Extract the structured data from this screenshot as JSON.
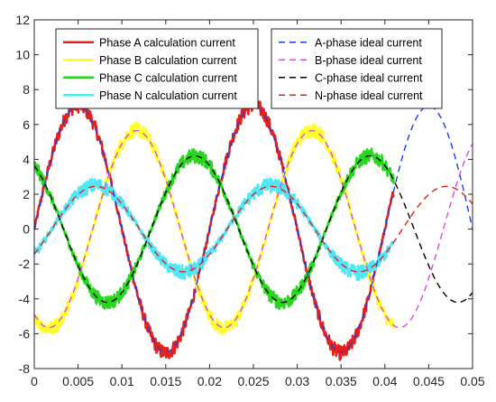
{
  "chart_data": {
    "type": "line",
    "title": "",
    "xlabel": "",
    "ylabel": "",
    "xlim": [
      0,
      0.05
    ],
    "ylim": [
      -8,
      12
    ],
    "grid": false,
    "legend_placement": "top, two columns",
    "x_ticks": [
      0,
      0.005,
      0.01,
      0.015,
      0.02,
      0.025,
      0.03,
      0.035,
      0.04,
      0.045,
      0.05
    ],
    "x_tick_labels": [
      "0",
      "0.005",
      "0.01",
      "0.015",
      "0.02",
      "0.025",
      "0.03",
      "0.035",
      "0.04",
      "0.045",
      "0.05"
    ],
    "y_ticks": [
      -8,
      -6,
      -4,
      -2,
      0,
      2,
      4,
      6,
      8,
      10,
      12
    ],
    "y_tick_labels": [
      "-8",
      "-6",
      "-4",
      "-2",
      "0",
      "2",
      "4",
      "6",
      "8",
      "10",
      "12"
    ],
    "series": [
      {
        "name": "Phase A calculation current",
        "style": "solid",
        "color": "#e8201a",
        "amplitude": 7.1,
        "frequency_hz": 50,
        "phase_deg": 0,
        "x_range": [
          0,
          0.041
        ],
        "noisy": true
      },
      {
        "name": "Phase B calculation current",
        "style": "solid",
        "color": "#ffff28",
        "amplitude": 5.7,
        "frequency_hz": 50,
        "phase_deg": -120,
        "x_range": [
          0,
          0.041
        ],
        "noisy": true
      },
      {
        "name": "Phase C calculation current",
        "style": "solid",
        "color": "#27d61d",
        "amplitude": 4.2,
        "frequency_hz": 50,
        "phase_deg": 120,
        "x_range": [
          0,
          0.041
        ],
        "noisy": true
      },
      {
        "name": "Phase N calculation current",
        "style": "solid",
        "color": "#4fe6f5",
        "amplitude": 2.5,
        "frequency_hz": 50,
        "phase_deg": -36,
        "x_range": [
          0,
          0.041
        ],
        "noisy": true
      },
      {
        "name": "A-phase ideal current",
        "style": "dashed",
        "color": "#1a3ff0",
        "amplitude": 7.05,
        "frequency_hz": 50,
        "phase_deg": 0,
        "x_range": [
          0,
          0.05
        ],
        "noisy": false
      },
      {
        "name": "B-phase ideal current",
        "style": "dashed",
        "color": "#e048e6",
        "amplitude": 5.65,
        "frequency_hz": 50,
        "phase_deg": -120,
        "x_range": [
          0,
          0.05
        ],
        "noisy": false
      },
      {
        "name": "C-phase ideal current",
        "style": "dashed",
        "color": "#000000",
        "amplitude": 4.2,
        "frequency_hz": 50,
        "phase_deg": 120,
        "x_range": [
          0,
          0.05
        ],
        "noisy": false
      },
      {
        "name": "N-phase ideal current",
        "style": "dashed",
        "color": "#e8201a",
        "amplitude": 2.45,
        "frequency_hz": 50,
        "phase_deg": -36,
        "x_range": [
          0,
          0.05
        ],
        "noisy": false
      }
    ]
  }
}
